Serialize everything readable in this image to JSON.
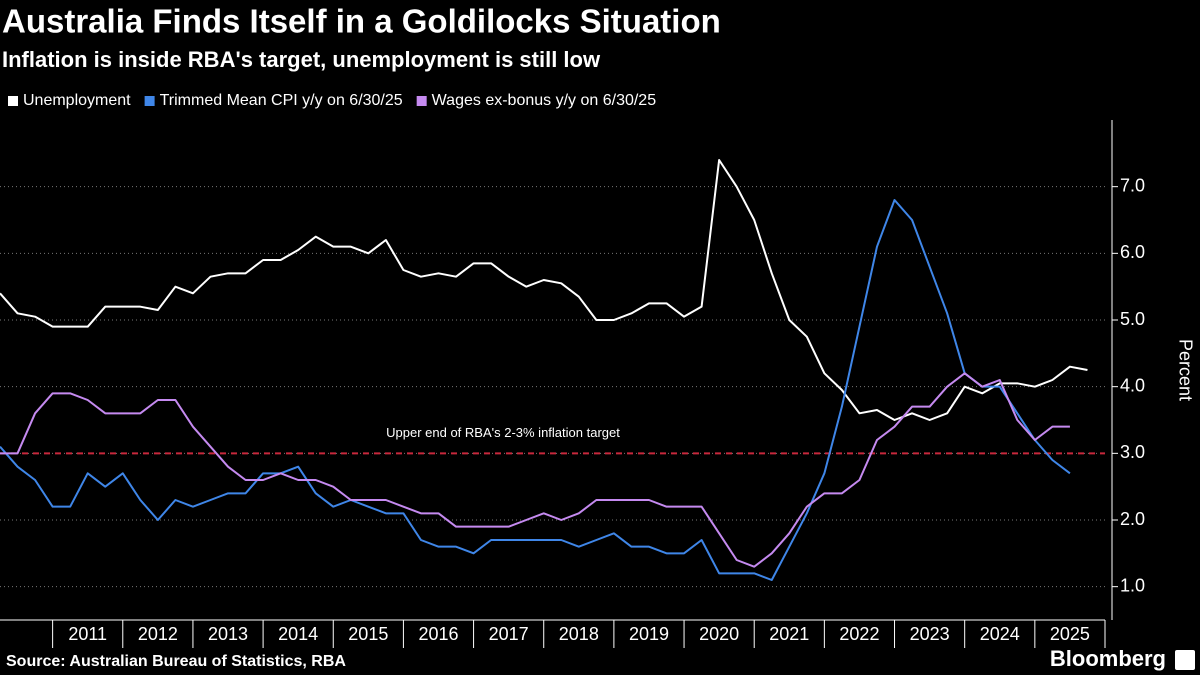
{
  "chart_data": {
    "type": "line",
    "title": "Australia Finds Itself in a Goldilocks Situation",
    "subtitle": "Inflation is inside RBA's target, unemployment is still low",
    "y_label": "Percent",
    "source": "Source: Australian Bureau of Statistics, RBA",
    "brand": "Bloomberg",
    "x": [
      2010.25,
      2010.5,
      2010.75,
      2011,
      2011.25,
      2011.5,
      2011.75,
      2012,
      2012.25,
      2012.5,
      2012.75,
      2013,
      2013.25,
      2013.5,
      2013.75,
      2014,
      2014.25,
      2014.5,
      2014.75,
      2015,
      2015.25,
      2015.5,
      2015.75,
      2016,
      2016.25,
      2016.5,
      2016.75,
      2017,
      2017.25,
      2017.5,
      2017.75,
      2018,
      2018.25,
      2018.5,
      2018.75,
      2019,
      2019.25,
      2019.5,
      2019.75,
      2020,
      2020.25,
      2020.5,
      2020.75,
      2021,
      2021.25,
      2021.5,
      2021.75,
      2022,
      2022.25,
      2022.5,
      2022.75,
      2023,
      2023.25,
      2023.5,
      2023.75,
      2024,
      2024.25,
      2024.5,
      2024.75,
      2025,
      2025.25,
      2025.5,
      2025.75
    ],
    "series": [
      {
        "name": "Unemployment",
        "color": "#ffffff",
        "values": [
          5.4,
          5.1,
          5.05,
          4.9,
          4.9,
          4.9,
          5.2,
          5.2,
          5.2,
          5.15,
          5.5,
          5.4,
          5.65,
          5.7,
          5.7,
          5.9,
          5.9,
          6.05,
          6.25,
          6.1,
          6.1,
          6.0,
          6.2,
          5.75,
          5.65,
          5.7,
          5.65,
          5.85,
          5.85,
          5.65,
          5.5,
          5.6,
          5.55,
          5.35,
          5.0,
          5.0,
          5.1,
          5.25,
          5.25,
          5.05,
          5.2,
          7.4,
          7.0,
          6.5,
          5.7,
          5.0,
          4.75,
          4.2,
          3.95,
          3.6,
          3.65,
          3.5,
          3.6,
          3.5,
          3.6,
          4.0,
          3.9,
          4.05,
          4.05,
          4.0,
          4.1,
          4.3,
          4.25
        ]
      },
      {
        "name": "Trimmed Mean CPI y/y on 6/30/25",
        "color": "#3f86e8",
        "values": [
          3.1,
          2.8,
          2.6,
          2.2,
          2.2,
          2.7,
          2.5,
          2.7,
          2.3,
          2.0,
          2.3,
          2.2,
          2.3,
          2.4,
          2.4,
          2.7,
          2.7,
          2.8,
          2.4,
          2.2,
          2.3,
          2.2,
          2.1,
          2.1,
          1.7,
          1.6,
          1.6,
          1.5,
          1.7,
          1.7,
          1.7,
          1.7,
          1.7,
          1.6,
          1.7,
          1.8,
          1.6,
          1.6,
          1.5,
          1.5,
          1.7,
          1.2,
          1.2,
          1.2,
          1.1,
          1.6,
          2.1,
          2.7,
          3.7,
          4.9,
          6.1,
          6.8,
          6.5,
          5.8,
          5.1,
          4.2,
          4.0,
          4.0,
          3.6,
          3.2,
          2.9,
          2.7,
          null
        ]
      },
      {
        "name": "Wages ex-bonus y/y on 6/30/25",
        "color": "#c58af0",
        "values": [
          3.0,
          3.0,
          3.6,
          3.9,
          3.9,
          3.8,
          3.6,
          3.6,
          3.6,
          3.8,
          3.8,
          3.4,
          3.1,
          2.8,
          2.6,
          2.6,
          2.7,
          2.6,
          2.6,
          2.5,
          2.3,
          2.3,
          2.3,
          2.2,
          2.1,
          2.1,
          1.9,
          1.9,
          1.9,
          1.9,
          2.0,
          2.1,
          2.0,
          2.1,
          2.3,
          2.3,
          2.3,
          2.3,
          2.2,
          2.2,
          2.2,
          1.8,
          1.4,
          1.3,
          1.5,
          1.8,
          2.2,
          2.4,
          2.4,
          2.6,
          3.2,
          3.4,
          3.7,
          3.7,
          4.0,
          4.2,
          4.0,
          4.1,
          3.5,
          3.2,
          3.4,
          3.4,
          null
        ]
      }
    ],
    "reference_line": {
      "value": 3,
      "label": "Upper end of RBA's 2-3% inflation target",
      "color": "#c8283c"
    },
    "xlim": [
      2010.25,
      2026
    ],
    "xticks": [
      2011,
      2012,
      2013,
      2014,
      2015,
      2016,
      2017,
      2018,
      2019,
      2020,
      2021,
      2022,
      2023,
      2024,
      2025
    ],
    "ylim": [
      0.5,
      8
    ],
    "yticks": [
      {
        "value": 1,
        "label": "1.0"
      },
      {
        "value": 2,
        "label": "2.0"
      },
      {
        "value": 3,
        "label": "3.0"
      },
      {
        "value": 4,
        "label": "4.0"
      },
      {
        "value": 5,
        "label": "5.0"
      },
      {
        "value": 6,
        "label": "6.0"
      },
      {
        "value": 7,
        "label": "7.0"
      }
    ],
    "grid": true,
    "y_axis_side": "right"
  }
}
